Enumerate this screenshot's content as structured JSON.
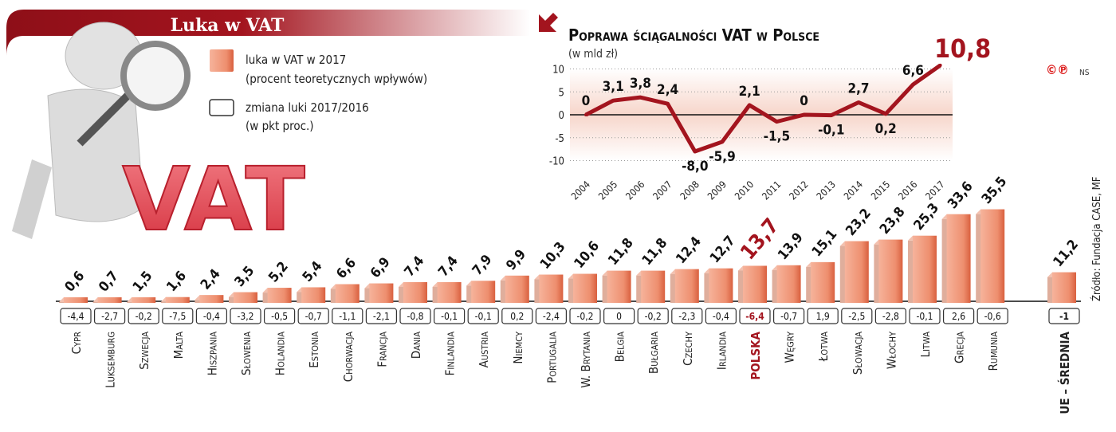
{
  "header": {
    "title": "Luka w VAT"
  },
  "legend": {
    "gap_label_1": "luka w VAT w 2017",
    "gap_label_2": "(procent teoretycznych wpływów)",
    "change_label_1": "zmiana luki 2017/2016",
    "change_label_2": "(w pkt proc.)"
  },
  "illustration": {
    "text": "VAT"
  },
  "copyright": {
    "marks": "©℗",
    "author": "NS"
  },
  "source": "Źródło: Fundacja CASE, MF",
  "colors": {
    "accent": "#a3141e",
    "bar": "#ee9a7e",
    "bar_dark": "#d9603f",
    "line": "#a3141e"
  },
  "chart_data": [
    {
      "type": "bar",
      "title": "",
      "categories": [
        "Cypr",
        "Luksemburg",
        "Szwecja",
        "Malta",
        "Hiszpania",
        "Słowenia",
        "Holandia",
        "Estonia",
        "Chorwacja",
        "Francja",
        "Dania",
        "Finlandia",
        "Austria",
        "Niemcy",
        "Portugalia",
        "W. Brytania",
        "Belgia",
        "Bułgaria",
        "Czechy",
        "Irlandia",
        "Polska",
        "Węgry",
        "Łotwa",
        "Słowacja",
        "Włochy",
        "Litwa",
        "Grecja",
        "Rumunia",
        "UE – średnia"
      ],
      "series": [
        {
          "name": "luka w VAT w 2017",
          "values": [
            "0,6",
            "0,7",
            "1,5",
            "1,6",
            "2,4",
            "3,5",
            "5,2",
            "5,4",
            "6,6",
            "6,9",
            "7,4",
            "7,4",
            "7,9",
            "9,9",
            "10,3",
            "10,6",
            "11,8",
            "11,8",
            "12,4",
            "12,7",
            "13,7",
            "13,9",
            "15,1",
            "23,2",
            "23,8",
            "25,3",
            "33,6",
            "35,5",
            "11,2"
          ]
        },
        {
          "name": "zmiana luki 2017/2016",
          "values": [
            "-4,4",
            "-2,7",
            "-0,2",
            "-7,5",
            "-0,4",
            "-3,2",
            "-0,5",
            "-0,7",
            "-1,1",
            "-2,1",
            "-0,8",
            "-0,1",
            "-0,1",
            "0,2",
            "-2,4",
            "-0,2",
            "0",
            "-0,2",
            "-2,3",
            "-0,4",
            "-6,4",
            "-0,7",
            "1,9",
            "-2,5",
            "-2,8",
            "-0,1",
            "2,6",
            "-0,6",
            "-1"
          ]
        }
      ],
      "highlight": "Polska"
    },
    {
      "type": "line",
      "title": "Poprawa ściągalności VAT w Polsce",
      "subtitle": "(w mld zł)",
      "x": [
        "2004",
        "2005",
        "2006",
        "2007",
        "2008",
        "2009",
        "2010",
        "2011",
        "2012",
        "2013",
        "2014",
        "2015",
        "2016",
        "2017"
      ],
      "values": [
        "0",
        "3,1",
        "3,8",
        "2,4",
        "-8,0",
        "-5,9",
        "2,1",
        "-1,5",
        "0",
        "-0,1",
        "2,7",
        "0,2",
        "6,6",
        "10,8"
      ],
      "yticks": [
        "10",
        "5",
        "0",
        "-5",
        "-10"
      ],
      "ylim": [
        -10,
        10
      ],
      "grid": true
    }
  ]
}
